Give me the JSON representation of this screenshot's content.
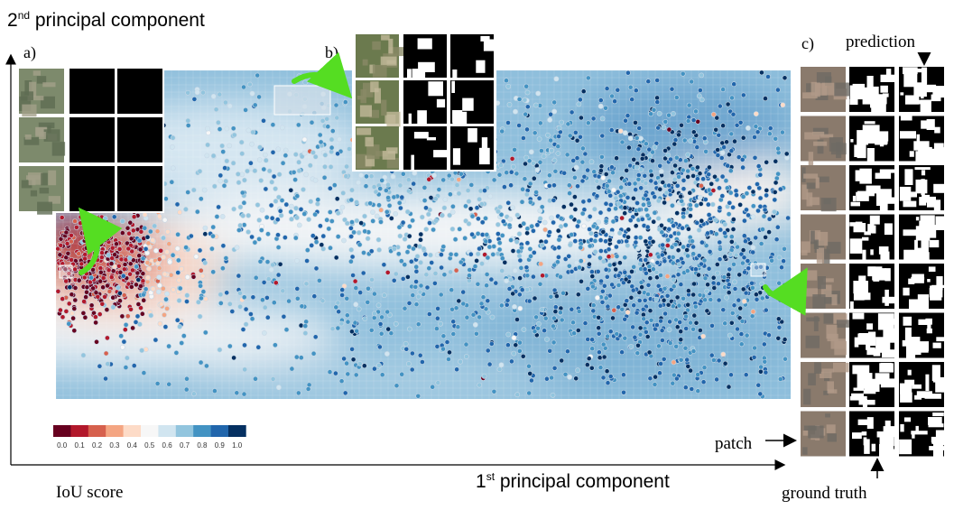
{
  "figure": {
    "ylabel_base": "2",
    "ylabel_sup": "nd",
    "ylabel_rest": " principal component",
    "xlabel_base": "1",
    "xlabel_sup": "st",
    "xlabel_rest": " principal component",
    "panel_a": "a)",
    "panel_b": "b)",
    "panel_c": "c)",
    "label_prediction": "prediction",
    "label_patch": "patch",
    "label_ground_truth": "ground truth",
    "colorbar_title": "IoU score"
  },
  "chart_data": {
    "type": "scatter",
    "title": "",
    "xlabel": "1st principal component",
    "ylabel": "2nd principal component",
    "grid": false,
    "background": "heatmap of IoU score",
    "colorbar": {
      "label": "IoU score",
      "ticks": [
        "0.0",
        "0.1",
        "0.2",
        "0.3",
        "0.4",
        "0.5",
        "0.6",
        "0.7",
        "0.8",
        "0.9",
        "1.0"
      ],
      "colors": [
        "#67001f",
        "#b2182b",
        "#d6604d",
        "#f4a582",
        "#fddbc7",
        "#f7f7f7",
        "#d1e5f0",
        "#92c5de",
        "#4393c3",
        "#2166ac",
        "#053061"
      ]
    },
    "clusters": [
      {
        "region": "left",
        "iou": 0.05,
        "count": 600
      },
      {
        "region": "right",
        "iou": 0.9,
        "count": 1400
      },
      {
        "region": "top",
        "iou": 0.7,
        "count": 500
      },
      {
        "region": "middle",
        "iou": 0.8,
        "count": 900
      }
    ],
    "insets": [
      {
        "label": "a)",
        "rows": 3,
        "columns": [
          "patch",
          "prediction",
          "ground truth"
        ]
      },
      {
        "label": "b)",
        "rows": 3,
        "columns": [
          "patch",
          "prediction",
          "ground truth"
        ]
      },
      {
        "label": "c)",
        "rows": 8,
        "columns": [
          "patch",
          "ground truth",
          "prediction"
        ]
      }
    ]
  }
}
